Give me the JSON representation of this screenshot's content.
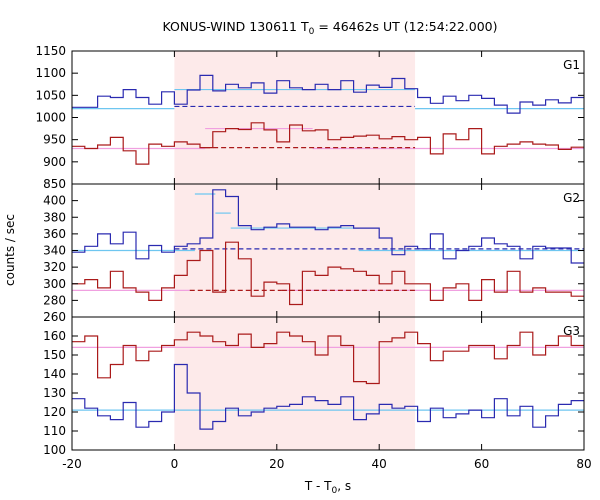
{
  "chart_data": {
    "type": "line",
    "title_main": "KONUS-WIND 130611 T",
    "title_sub": "0",
    "title_rest": " = 46462s UT (12:54:22.000)",
    "xlabel_main": "T - T",
    "xlabel_sub": "0",
    "xlabel_rest": ", s",
    "ylabel": "counts / sec",
    "xlim": [
      -20,
      80
    ],
    "x_ticks": [
      -20,
      0,
      20,
      40,
      60,
      80
    ],
    "highlight_interval": [
      0,
      47
    ],
    "colors": {
      "blue": "#2a2ab0",
      "red": "#aa1a1a",
      "cyan": "#6ec6f0",
      "pink": "#f0a0e0",
      "shade": "#fdeaea"
    },
    "bin_edges": [
      -20,
      -17.5,
      -15,
      -12.5,
      -10,
      -7.5,
      -5,
      -2.5,
      0,
      2.5,
      5,
      7.5,
      10,
      12.5,
      15,
      17.5,
      20,
      22.5,
      25,
      27.5,
      30,
      32.5,
      35,
      37.5,
      40,
      42.5,
      45,
      47.5,
      50,
      52.5,
      55,
      57.5,
      60,
      62.5,
      65,
      67.5,
      70,
      72.5,
      75,
      77.5,
      80
    ],
    "panels": [
      {
        "name": "G1",
        "ylim": [
          850,
          1150
        ],
        "yticks": [
          850,
          900,
          950,
          1000,
          1050,
          1100,
          1150
        ],
        "series": [
          {
            "color": "blue",
            "values": [
              1023,
              1023,
              1048,
              1045,
              1063,
              1045,
              1030,
              1058,
              1030,
              1062,
              1095,
              1060,
              1075,
              1067,
              1078,
              1055,
              1083,
              1067,
              1063,
              1075,
              1063,
              1083,
              1057,
              1073,
              1068,
              1088,
              1065,
              1045,
              1032,
              1048,
              1038,
              1050,
              1043,
              1028,
              1010,
              1035,
              1028,
              1040,
              1033,
              1045
            ]
          },
          {
            "color": "red",
            "values": [
              935,
              930,
              938,
              955,
              925,
              895,
              940,
              935,
              945,
              940,
              932,
              968,
              975,
              973,
              988,
              972,
              945,
              983,
              970,
              972,
              950,
              955,
              958,
              960,
              952,
              957,
              950,
              955,
              918,
              963,
              950,
              975,
              918,
              935,
              940,
              945,
              940,
              938,
              928,
              933
            ]
          }
        ],
        "fits": [
          {
            "color": "cyan",
            "style": "solid",
            "x": [
              -20,
              0
            ],
            "y": 1020
          },
          {
            "color": "cyan",
            "style": "solid",
            "x": [
              0,
              47
            ],
            "y": 1063
          },
          {
            "color": "cyan",
            "style": "solid",
            "x": [
              47,
              80
            ],
            "y": 1020
          },
          {
            "color": "blue",
            "style": "dashed",
            "x": [
              0,
              47
            ],
            "y": 1025
          },
          {
            "color": "pink",
            "style": "solid",
            "x": [
              -20,
              0
            ],
            "y": 930
          },
          {
            "color": "pink",
            "style": "solid",
            "x": [
              0,
              6
            ],
            "y": 930
          },
          {
            "color": "pink",
            "style": "solid",
            "x": [
              6,
              27
            ],
            "y": 975
          },
          {
            "color": "pink",
            "style": "solid",
            "x": [
              27,
              80
            ],
            "y": 930
          },
          {
            "color": "red",
            "style": "dashed",
            "x": [
              6,
              47
            ],
            "y": 932
          }
        ]
      },
      {
        "name": "G2",
        "ylim": [
          260,
          420
        ],
        "yticks": [
          260,
          280,
          300,
          320,
          340,
          360,
          380,
          400,
          420
        ],
        "series": [
          {
            "color": "blue",
            "values": [
              338,
              345,
              360,
              348,
              362,
              330,
              346,
              338,
              345,
              348,
              355,
              413,
              405,
              370,
              365,
              368,
              372,
              368,
              368,
              365,
              368,
              370,
              367,
              367,
              355,
              335,
              345,
              342,
              360,
              330,
              340,
              345,
              355,
              348,
              345,
              330,
              345,
              343,
              343,
              325
            ]
          },
          {
            "color": "red",
            "values": [
              300,
              305,
              295,
              315,
              295,
              290,
              280,
              295,
              310,
              328,
              340,
              290,
              350,
              330,
              285,
              302,
              300,
              275,
              315,
              310,
              320,
              318,
              315,
              310,
              300,
              315,
              300,
              300,
              280,
              295,
              300,
              280,
              305,
              290,
              315,
              290,
              295,
              290,
              290,
              285
            ]
          }
        ],
        "fits": [
          {
            "color": "cyan",
            "style": "solid",
            "x": [
              -20,
              4
            ],
            "y": 340
          },
          {
            "color": "cyan",
            "style": "solid",
            "x": [
              4,
              8
            ],
            "y": 408
          },
          {
            "color": "cyan",
            "style": "solid",
            "x": [
              8,
              11
            ],
            "y": 385
          },
          {
            "color": "cyan",
            "style": "solid",
            "x": [
              11,
              36
            ],
            "y": 367
          },
          {
            "color": "cyan",
            "style": "solid",
            "x": [
              36,
              80
            ],
            "y": 340
          },
          {
            "color": "blue",
            "style": "dashed",
            "x": [
              0,
              80
            ],
            "y": 342
          },
          {
            "color": "pink",
            "style": "solid",
            "x": [
              -20,
              3
            ],
            "y": 292
          },
          {
            "color": "pink",
            "style": "solid",
            "x": [
              21,
              80
            ],
            "y": 292
          },
          {
            "color": "red",
            "style": "dashed",
            "x": [
              3,
              21
            ],
            "y": 292
          },
          {
            "color": "red",
            "style": "dashed",
            "x": [
              21,
              47
            ],
            "y": 292
          }
        ]
      },
      {
        "name": "G3",
        "ylim": [
          100,
          170
        ],
        "yticks": [
          100,
          110,
          120,
          130,
          140,
          150,
          160,
          170
        ],
        "series": [
          {
            "color": "blue",
            "values": [
              127,
              122,
              118,
              116,
              125,
              112,
              115,
              120,
              145,
              130,
              111,
              115,
              122,
              118,
              120,
              122,
              123,
              124,
              128,
              126,
              124,
              128,
              116,
              119,
              124,
              122,
              123,
              115,
              122,
              117,
              119,
              121,
              117,
              127,
              118,
              123,
              112,
              118,
              124,
              126
            ]
          },
          {
            "color": "red",
            "values": [
              157,
              160,
              138,
              145,
              155,
              147,
              152,
              155,
              158,
              162,
              160,
              157,
              155,
              161,
              154,
              156,
              162,
              160,
              157,
              150,
              160,
              155,
              136,
              135,
              157,
              159,
              162,
              156,
              147,
              152,
              152,
              155,
              155,
              148,
              155,
              162,
              150,
              155,
              160,
              155
            ]
          }
        ],
        "fits": [
          {
            "color": "cyan",
            "style": "solid",
            "x": [
              -20,
              80
            ],
            "y": 121
          },
          {
            "color": "pink",
            "style": "solid",
            "x": [
              -20,
              80
            ],
            "y": 154
          }
        ]
      }
    ]
  }
}
